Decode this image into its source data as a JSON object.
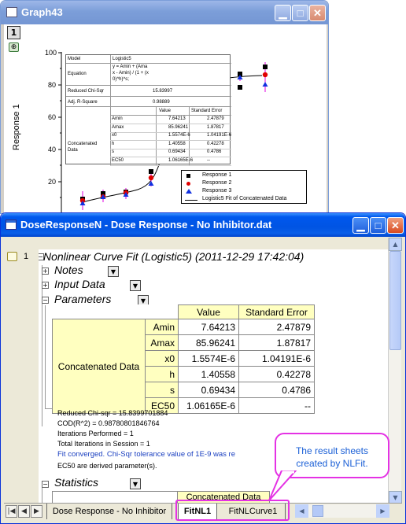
{
  "graph_window": {
    "title": "Graph43",
    "layer_number": "1",
    "y_axis_label": "Response 1",
    "y_ticks": [
      "100",
      "80",
      "60",
      "40",
      "20"
    ],
    "fit_table": {
      "model_label": "Model",
      "model_value": "Logistic5",
      "equation_label": "Equation",
      "equation_value": [
        "y = Amin + (Ama",
        "x - Amin) / (1 + (x",
        "0)^h)^s;"
      ],
      "chisqr_label": "Reduced Chi-Sqr",
      "chisqr_value": "15.83997",
      "r2_label": "Adj. R-Square",
      "r2_value": "0.98889",
      "value_header": "Value",
      "se_header": "Standard Error",
      "group_label": [
        "Concatenated",
        "Data"
      ],
      "rows": [
        {
          "param": "Amin",
          "value": "7.64213",
          "se": "2.47879"
        },
        {
          "param": "Amax",
          "value": "85.96241",
          "se": "1.87817"
        },
        {
          "param": "x0",
          "value": "1.5574E-6",
          "se": "1.04191E-6"
        },
        {
          "param": "h",
          "value": "1.40558",
          "se": "0.42278"
        },
        {
          "param": "s",
          "value": "0.69434",
          "se": "0.4786"
        },
        {
          "param": "EC50",
          "value": "1.06165E-6",
          "se": "--"
        }
      ]
    },
    "legend": [
      "Response 1",
      "Response 2",
      "Response 3",
      "Logistic5 Fit of Concatenated Data"
    ],
    "colors": {
      "response1": "#000000",
      "response2": "#e00000",
      "response3": "#1030e0",
      "fit": "#000000",
      "error_bar": "#e000e0"
    }
  },
  "workbook_window": {
    "title": "DoseResponseN - Dose Response - No Inhibitor.dat",
    "row_number": "1",
    "report_heading": "Nonlinear Curve Fit (Logistic5) (2011-12-29 17:42:04)",
    "sections": {
      "notes": "Notes",
      "input_data": "Input Data",
      "parameters": "Parameters",
      "statistics": "Statistics"
    },
    "param_table": {
      "value_header": "Value",
      "se_header": "Standard Error",
      "group_label": "Concatenated Data",
      "rows": [
        {
          "param": "Amin",
          "value": "7.64213",
          "se": "2.47879"
        },
        {
          "param": "Amax",
          "value": "85.96241",
          "se": "1.87817"
        },
        {
          "param": "x0",
          "value": "1.5574E-6",
          "se": "1.04191E-6"
        },
        {
          "param": "h",
          "value": "1.40558",
          "se": "0.42278"
        },
        {
          "param": "s",
          "value": "0.69434",
          "se": "0.4786"
        },
        {
          "param": "EC50",
          "value": "1.06165E-6",
          "se": "--"
        }
      ]
    },
    "notes_lines": [
      "Reduced Chi-sqr = 15.8399701884",
      "COD(R^2) = 0.98780801846764",
      "Iterations Performed = 1",
      "Total Iterations in Session = 1"
    ],
    "fit_converged": "Fit converged. Chi-Sqr tolerance value of 1E-9 was re",
    "ec50_note": "EC50 are derived parameter(s).",
    "stats_header": "Concatenated Data",
    "tabs": [
      "Dose Response - No Inhibitor",
      "FitNL1",
      "FitNLCurve1"
    ],
    "active_tab": "FitNL1"
  },
  "callout": {
    "text": [
      "The result sheets",
      "created by NLFit."
    ]
  }
}
